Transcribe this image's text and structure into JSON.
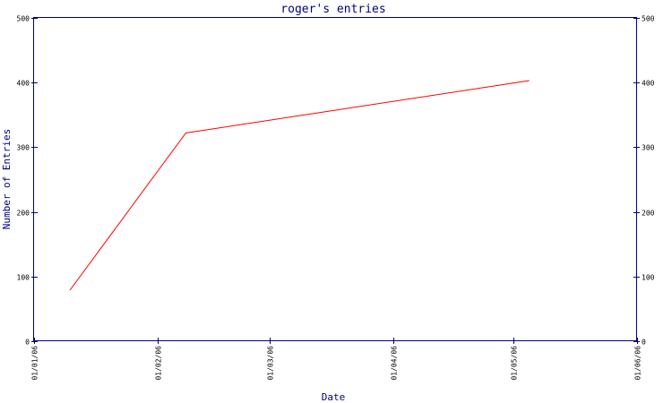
{
  "chart_data": {
    "type": "line",
    "title": "roger's entries",
    "xlabel": "Date",
    "ylabel": "Number of Entries",
    "x_ticks": [
      "01/01/06",
      "01/02/06",
      "01/03/06",
      "01/04/06",
      "01/05/06",
      "01/06/06"
    ],
    "xlim": [
      "2006-01-01",
      "2006-06-01"
    ],
    "y_ticks": [
      0,
      100,
      200,
      300,
      400,
      500
    ],
    "ylim": [
      0,
      500
    ],
    "grid": false,
    "colors": {
      "axis": "#000080",
      "line": "#ff0000",
      "tick_text": "#000000"
    },
    "series": [
      {
        "x": [
          "2006-01-10",
          "2006-02-08",
          "2006-05-05"
        ],
        "y": [
          79,
          322,
          403
        ]
      }
    ]
  }
}
